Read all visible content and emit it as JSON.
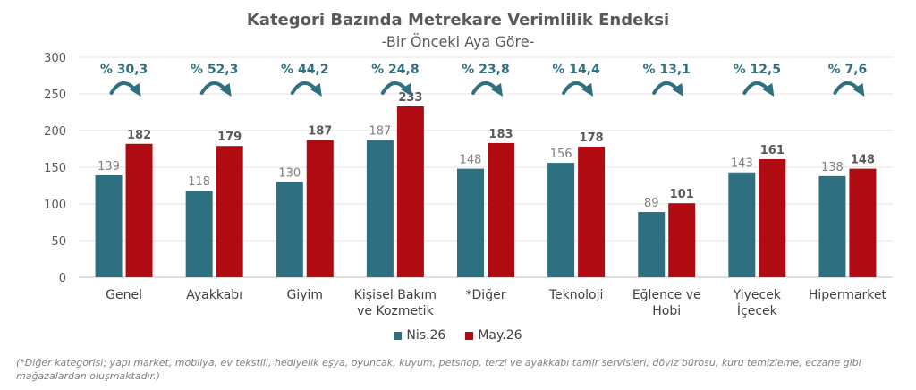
{
  "chart_data": {
    "type": "bar",
    "title": "Kategori Bazında Metrekare Verimlilik Endeksi",
    "subtitle": "-Bir Önceki Aya Göre-",
    "categories": [
      [
        "Genel"
      ],
      [
        "Ayakkabı"
      ],
      [
        "Giyim"
      ],
      [
        "Kişisel Bakım",
        "ve Kozmetik"
      ],
      [
        "*Diğer"
      ],
      [
        "Teknoloji"
      ],
      [
        "Eğlence ve",
        "Hobi"
      ],
      [
        "Yiyecek",
        "İçecek"
      ],
      [
        "Hipermarket"
      ]
    ],
    "series": [
      {
        "name": "Nis.26",
        "color": "#2e7080",
        "values": [
          139,
          118,
          130,
          187,
          148,
          156,
          89,
          143,
          138
        ]
      },
      {
        "name": "May.26",
        "color": "#b00a12",
        "values": [
          182,
          179,
          187,
          233,
          183,
          178,
          101,
          161,
          148
        ]
      }
    ],
    "change_labels": [
      "% 30,3",
      "% 52,3",
      "% 44,2",
      "% 24,8",
      "% 23,8",
      "% 14,4",
      "% 13,1",
      "% 12,5",
      "% 7,6"
    ],
    "change_color": "#2e7080",
    "ylim": [
      0,
      300
    ],
    "yticks": [
      0,
      50,
      100,
      150,
      200,
      250,
      300
    ],
    "grid": true,
    "legend_position": "bottom"
  },
  "footnote": "(*Diğer kategorisi; yapı market, mobilya, ev tekstili, hediyelik eşya, oyuncak, kuyum, petshop, terzi ve ayakkabı tamir servisleri, döviz bürosu, kuru temizleme, eczane gibi mağazalardan oluşmaktadır.)"
}
